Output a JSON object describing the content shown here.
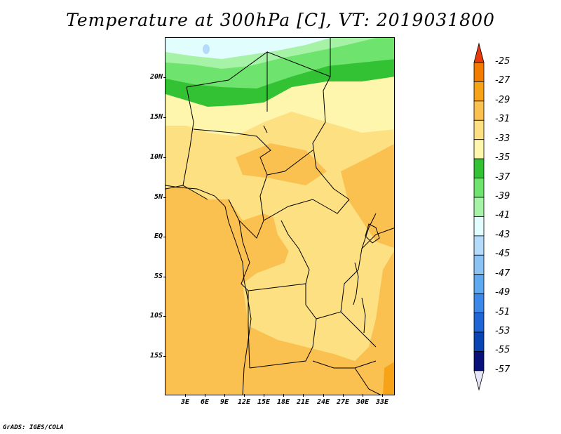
{
  "title": "Temperature at 300hPa [C], VT: 2019031800",
  "credit": "GrADS: IGES/COLA",
  "map": {
    "lat_labels": [
      "20N",
      "15N",
      "10N",
      "5N",
      "EQ",
      "5S",
      "10S",
      "15S"
    ],
    "lon_labels": [
      "3E",
      "6E",
      "9E",
      "12E",
      "15E",
      "18E",
      "21E",
      "24E",
      "27E",
      "30E",
      "33E"
    ],
    "lon_range": [
      0,
      35
    ],
    "lat_range": [
      -20,
      25
    ]
  },
  "colorbar": {
    "levels": [
      "-25",
      "-27",
      "-29",
      "-31",
      "-33",
      "-35",
      "-37",
      "-39",
      "-41",
      "-43",
      "-45",
      "-47",
      "-49",
      "-51",
      "-53",
      "-55",
      "-57"
    ],
    "colors": [
      "#e83a0a",
      "#f27b00",
      "#f7a317",
      "#fbc150",
      "#fde081",
      "#fef6ad",
      "#33c233",
      "#6ee36e",
      "#a6f2a6",
      "#e1fdfd",
      "#b4dcfa",
      "#8bc3f5",
      "#5ea9ef",
      "#3c88e8",
      "#1f65d6",
      "#0a43b4",
      "#08107a",
      "#e6e6fa"
    ]
  }
}
